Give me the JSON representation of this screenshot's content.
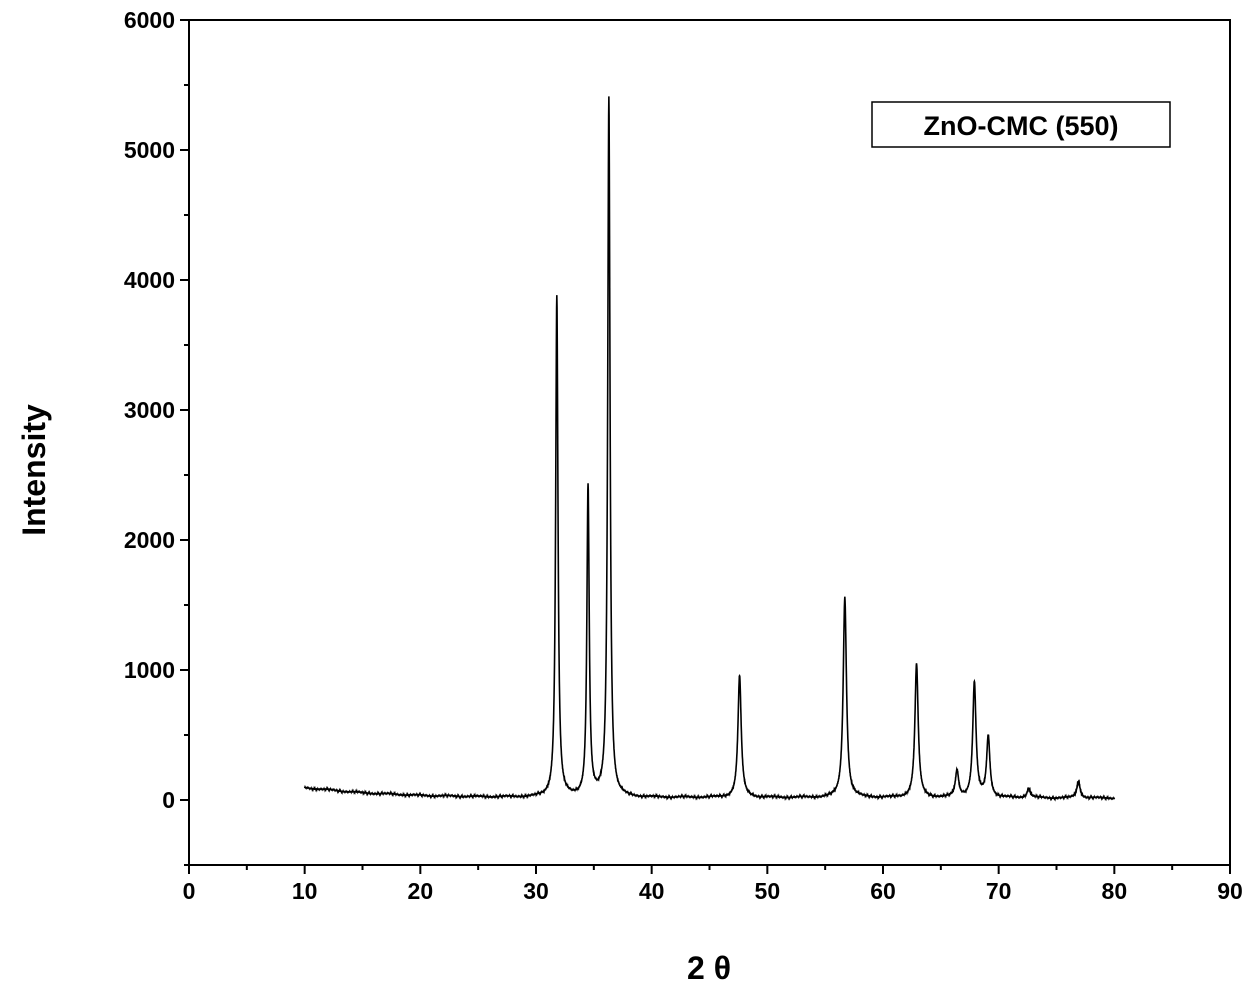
{
  "chart_data": {
    "type": "line",
    "title": "",
    "xlabel": "2 θ",
    "ylabel": "Intensity",
    "xlim": [
      0,
      90
    ],
    "ylim": [
      -500,
      6000
    ],
    "x_ticks": [
      0,
      10,
      20,
      30,
      40,
      50,
      60,
      70,
      80,
      90
    ],
    "y_ticks": [
      0,
      1000,
      2000,
      3000,
      4000,
      5000,
      6000
    ],
    "grid": false,
    "legend": {
      "label": "ZnO-CMC (550)",
      "placement": "top-right"
    },
    "series": [
      {
        "name": "ZnO-CMC (550)",
        "color": "#000000",
        "x_range": [
          10,
          80
        ],
        "baseline": [
          [
            10,
            95
          ],
          [
            15,
            55
          ],
          [
            20,
            35
          ],
          [
            25,
            25
          ],
          [
            30,
            22
          ],
          [
            40,
            20
          ],
          [
            60,
            18
          ],
          [
            80,
            15
          ]
        ],
        "peaks": [
          {
            "x": 31.8,
            "y": 3880
          },
          {
            "x": 34.5,
            "y": 2410
          },
          {
            "x": 36.3,
            "y": 5400
          },
          {
            "x": 47.6,
            "y": 955
          },
          {
            "x": 56.7,
            "y": 1560
          },
          {
            "x": 62.9,
            "y": 1045
          },
          {
            "x": 66.4,
            "y": 220
          },
          {
            "x": 67.9,
            "y": 900
          },
          {
            "x": 69.1,
            "y": 485
          },
          {
            "x": 72.6,
            "y": 90
          },
          {
            "x": 76.9,
            "y": 145
          }
        ]
      }
    ]
  }
}
